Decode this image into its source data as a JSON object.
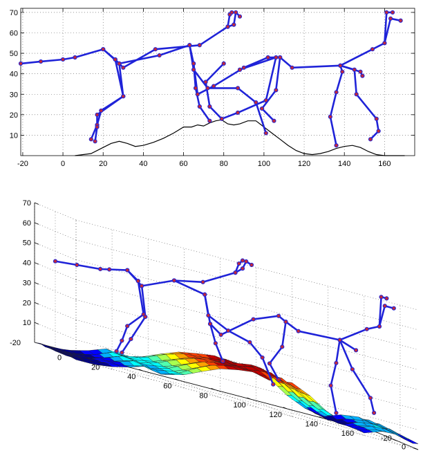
{
  "chart_data": [
    {
      "type": "line",
      "title": "",
      "xlabel": "",
      "ylabel": "",
      "xlim": [
        -21,
        175
      ],
      "ylim": [
        0,
        72
      ],
      "grid": "dotted",
      "x_ticks": [
        -20,
        0,
        20,
        40,
        60,
        80,
        100,
        120,
        140,
        160
      ],
      "y_ticks": [
        10,
        20,
        30,
        40,
        50,
        60,
        70
      ],
      "terrain": {
        "color": "#000000",
        "x": [
          6,
          14,
          20,
          24,
          28,
          32,
          36,
          40,
          45,
          50,
          55,
          60,
          64,
          67,
          70,
          73,
          76,
          79,
          82,
          85,
          88,
          92,
          96,
          100,
          104,
          108,
          112,
          116,
          120,
          124,
          128,
          132,
          136,
          140,
          144,
          148,
          152,
          156,
          160,
          170
        ],
        "y": [
          0,
          1,
          4,
          6,
          7,
          6,
          4.5,
          5,
          6.5,
          8.5,
          11,
          14,
          14,
          15,
          14.5,
          16,
          17,
          17.5,
          15.5,
          15,
          15.5,
          17,
          17,
          14,
          11,
          8,
          5,
          2.5,
          1,
          0.5,
          1,
          2,
          3.5,
          4.5,
          5,
          4,
          2,
          0.5,
          0,
          0
        ]
      },
      "figure": {
        "color": "#1f23d8",
        "joint_color": "#c0293c",
        "segments": [
          [
            [
              -21,
              45
            ],
            [
              -11,
              46
            ],
            [
              0,
              47
            ],
            [
              6,
              48
            ],
            [
              20,
              52
            ],
            [
              26,
              47
            ]
          ],
          [
            [
              20,
              52
            ],
            [
              28,
              45
            ],
            [
              30,
              43
            ],
            [
              46,
              52
            ],
            [
              68,
              54
            ],
            [
              82,
              63
            ],
            [
              85,
              64
            ]
          ],
          [
            [
              26,
              47
            ],
            [
              28,
              45
            ],
            [
              30,
              29
            ],
            [
              19,
              22
            ],
            [
              17,
              15
            ],
            [
              14,
              8
            ]
          ],
          [
            [
              26,
              47
            ],
            [
              30,
              29
            ],
            [
              17,
              20
            ],
            [
              17,
              14
            ],
            [
              16,
              7
            ]
          ],
          [
            [
              28,
              45
            ],
            [
              48,
              49
            ],
            [
              63,
              54
            ],
            [
              65,
              45
            ],
            [
              66,
              33
            ],
            [
              68,
              24
            ],
            [
              73,
              17
            ]
          ],
          [
            [
              63,
              54
            ],
            [
              65,
              42
            ],
            [
              72,
              33
            ],
            [
              87,
              33
            ],
            [
              96,
              26
            ],
            [
              101,
              11
            ]
          ],
          [
            [
              65,
              45
            ],
            [
              67,
              30
            ],
            [
              75,
              34
            ],
            [
              90,
              43
            ],
            [
              102,
              48
            ],
            [
              108,
              48
            ],
            [
              106,
              32
            ],
            [
              99,
              23
            ],
            [
              105,
              17
            ]
          ],
          [
            [
              88,
              42
            ],
            [
              106,
              48
            ],
            [
              101,
              27
            ],
            [
              87,
              21
            ],
            [
              79,
              18
            ],
            [
              73,
              24
            ],
            [
              71,
              36
            ],
            [
              80,
              45
            ]
          ],
          [
            [
              82,
              63
            ],
            [
              83,
              69
            ],
            [
              84,
              70
            ]
          ],
          [
            [
              85,
              64
            ],
            [
              86,
              70
            ],
            [
              88,
              68
            ]
          ],
          [
            [
              108,
              48
            ],
            [
              114,
              43
            ],
            [
              138,
              44
            ],
            [
              148,
              41
            ],
            [
              149,
              39
            ]
          ],
          [
            [
              138,
              44
            ],
            [
              139,
              41
            ],
            [
              136,
              31
            ],
            [
              133,
              19
            ],
            [
              136,
              5
            ]
          ],
          [
            [
              138,
              44
            ],
            [
              145,
              42
            ],
            [
              146,
              30
            ],
            [
              156,
              18
            ],
            [
              157,
              12
            ],
            [
              153,
              8
            ]
          ],
          [
            [
              138,
              44
            ],
            [
              154,
              52
            ],
            [
              160,
              55
            ],
            [
              163,
              67
            ],
            [
              168,
              66
            ]
          ],
          [
            [
              160,
              55
            ],
            [
              161,
              70
            ],
            [
              164,
              70
            ]
          ]
        ]
      }
    },
    {
      "type": "surface",
      "title": "",
      "xlabel": "",
      "ylabel": "",
      "zlabel": "",
      "xlim": [
        -20,
        170
      ],
      "ylim": [
        -20,
        20
      ],
      "zlim": [
        0,
        70
      ],
      "grid": "dotted",
      "x_ticks": [
        0,
        20,
        40,
        60,
        80,
        100,
        120,
        140,
        160
      ],
      "y_ticks": [
        -20,
        0,
        20
      ],
      "z_ticks": [
        10,
        20,
        30,
        40,
        50,
        60,
        70
      ],
      "y_tick_left": "-20",
      "colormap": [
        "#00008f",
        "#0000ff",
        "#00b0ff",
        "#00ffff",
        "#50ffb0",
        "#a8ff50",
        "#ffff00",
        "#ffa000",
        "#ff4000",
        "#c00000"
      ],
      "mesh_color": "#202020",
      "terrain_profile": {
        "x": [
          -20,
          -10,
          0,
          10,
          20,
          30,
          40,
          50,
          60,
          70,
          80,
          90,
          100,
          110,
          120,
          130,
          140,
          150,
          160,
          170
        ],
        "height": [
          0,
          0,
          1,
          3,
          6,
          4.5,
          7,
          11,
          14.5,
          16,
          17,
          15.5,
          17,
          13,
          7,
          3,
          1,
          4,
          5,
          3
        ]
      },
      "figure": {
        "color": "#1f23d8",
        "joint_color": "#c0293c",
        "segments": [
          [
            [
              -20,
              0,
              45
            ],
            [
              -8,
              0,
              46
            ],
            [
              5,
              0,
              47
            ],
            [
              10,
              0,
              48
            ],
            [
              20,
              0,
              50
            ],
            [
              26,
              0,
              46
            ]
          ],
          [
            [
              20,
              0,
              50
            ],
            [
              28,
              0,
              44
            ],
            [
              46,
              0,
              51
            ],
            [
              62,
              0,
              54
            ],
            [
              80,
              0,
              63
            ],
            [
              84,
              0,
              66
            ]
          ],
          [
            [
              26,
              0,
              46
            ],
            [
              29,
              0,
              30
            ],
            [
              20,
              0,
              22
            ],
            [
              17,
              0,
              14
            ],
            [
              14,
              0,
              8
            ]
          ],
          [
            [
              28,
              0,
              44
            ],
            [
              30,
              0,
              29
            ],
            [
              22,
              0,
              16
            ],
            [
              17,
              0,
              8
            ]
          ],
          [
            [
              46,
              0,
              51
            ],
            [
              63,
              0,
              48
            ],
            [
              66,
              0,
              34
            ],
            [
              69,
              0,
              25
            ],
            [
              73,
              0,
              17
            ]
          ],
          [
            [
              63,
              0,
              48
            ],
            [
              65,
              0,
              38
            ],
            [
              76,
              0,
              33
            ],
            [
              88,
              0,
              30
            ],
            [
              95,
              0,
              24
            ],
            [
              101,
              0,
              12
            ]
          ],
          [
            [
              66,
              0,
              34
            ],
            [
              72,
              0,
              30
            ],
            [
              90,
              0,
              42
            ],
            [
              104,
              0,
              47
            ],
            [
              108,
              0,
              45
            ],
            [
              106,
              0,
              32
            ],
            [
              99,
              0,
              22
            ],
            [
              104,
              0,
              15
            ]
          ],
          [
            [
              80,
              0,
              63
            ],
            [
              82,
              0,
              68
            ],
            [
              84,
              0,
              70
            ]
          ],
          [
            [
              84,
              0,
              66
            ],
            [
              86,
              0,
              70
            ],
            [
              89,
              0,
              69
            ]
          ],
          [
            [
              108,
              0,
              45
            ],
            [
              115,
              0,
              42
            ],
            [
              138,
              0,
              43
            ],
            [
              147,
              0,
              40
            ]
          ],
          [
            [
              138,
              0,
              43
            ],
            [
              136,
              0,
              31
            ],
            [
              133,
              0,
              19
            ],
            [
              136,
              0,
              6
            ]
          ],
          [
            [
              138,
              0,
              43
            ],
            [
              145,
              0,
              30
            ],
            [
              155,
              0,
              18
            ],
            [
              157,
              0,
              11
            ]
          ],
          [
            [
              138,
              0,
              43
            ],
            [
              153,
              0,
              52
            ],
            [
              160,
              0,
              55
            ],
            [
              163,
              0,
              66
            ],
            [
              168,
              0,
              66
            ]
          ],
          [
            [
              160,
              0,
              55
            ],
            [
              161,
              0,
              70
            ],
            [
              164,
              0,
              70
            ]
          ]
        ]
      }
    }
  ]
}
